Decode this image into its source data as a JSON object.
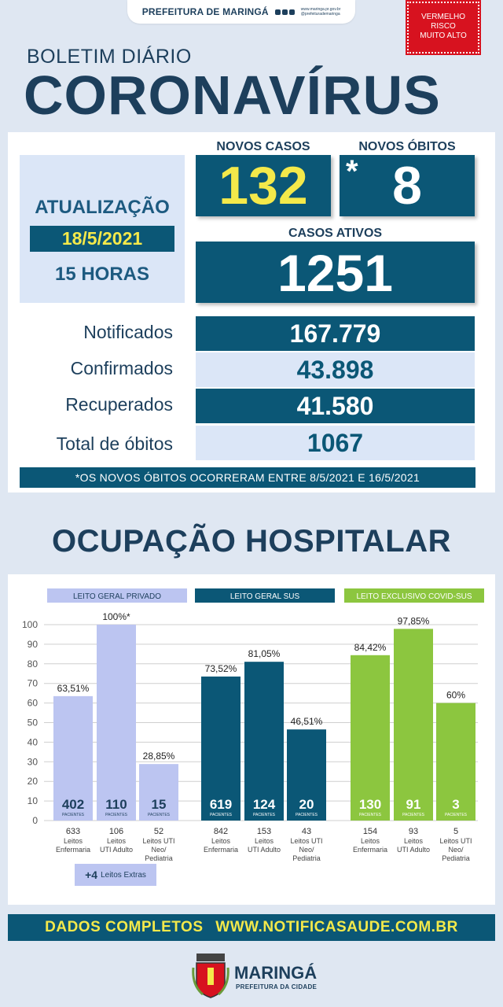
{
  "header": {
    "brand": "PREFEITURA DE MARINGÁ",
    "links": [
      "www.maringa.pr.gov.br",
      "@prefeiturademaringa"
    ],
    "risk": [
      "VERMELHO",
      "RISCO",
      "MUITO ALTO"
    ],
    "risk_color": "#d7121f",
    "subtitle": "BOLETIM DIÁRIO",
    "title": "CORONAVÍRUS"
  },
  "summary": {
    "update_label": "ATUALIZAÇÃO",
    "update_date": "18/5/2021",
    "update_hour": "15 HORAS",
    "new_cases_label": "NOVOS CASOS",
    "new_cases": "132",
    "new_deaths_label": "NOVOS ÓBITOS",
    "new_deaths_mark": "*",
    "new_deaths": "8",
    "active_label": "CASOS ATIVOS",
    "active": "1251",
    "rows": [
      {
        "label": "Notificados",
        "value": "167.779"
      },
      {
        "label": "Confirmados",
        "value": "43.898"
      },
      {
        "label": "Recuperados",
        "value": "41.580"
      },
      {
        "label": "Total de óbitos",
        "value": "1067"
      }
    ],
    "note": "*OS NOVOS ÓBITOS OCORRERAM ENTRE 8/5/2021 E 16/5/2021"
  },
  "hospital_title": "OCUPAÇÃO HOSPITALAR",
  "chart_data": {
    "type": "bar",
    "ylim": [
      0,
      100
    ],
    "yticks": [
      0,
      10,
      20,
      30,
      40,
      50,
      60,
      70,
      80,
      90,
      100
    ],
    "grid": true,
    "patients_label": "PACIENTES",
    "groups": [
      {
        "title": "LEITO GERAL PRIVADO",
        "color": "#bcc5f1",
        "header_color": "#bcc5f1",
        "header_text_color": "#1d3f5c",
        "bars": [
          {
            "value": 63.51,
            "label": "63,51%",
            "patients": "402",
            "beds": "633",
            "name": [
              "Leitos",
              "Enfermaria"
            ]
          },
          {
            "value": 100,
            "label": "100%*",
            "patients": "110",
            "beds": "106",
            "name": [
              "Leitos",
              "UTI Adulto"
            ]
          },
          {
            "value": 28.85,
            "label": "28,85%",
            "patients": "15",
            "beds": "52",
            "name": [
              "Leitos UTI",
              "Neo/",
              "Pediatria"
            ]
          }
        ]
      },
      {
        "title": "LEITO GERAL SUS",
        "color": "#0b5776",
        "header_color": "#0b5776",
        "header_text_color": "#ffffff",
        "bars": [
          {
            "value": 73.52,
            "label": "73,52%",
            "patients": "619",
            "beds": "842",
            "name": [
              "Leitos",
              "Enfermaria"
            ]
          },
          {
            "value": 81.05,
            "label": "81,05%",
            "patients": "124",
            "beds": "153",
            "name": [
              "Leitos",
              "UTI Adulto"
            ]
          },
          {
            "value": 46.51,
            "label": "46,51%",
            "patients": "20",
            "beds": "43",
            "name": [
              "Leitos UTI",
              "Neo/",
              "Pediatria"
            ]
          }
        ]
      },
      {
        "title": "LEITO EXCLUSIVO COVID-SUS",
        "color": "#8cc63f",
        "header_color": "#8cc63f",
        "header_text_color": "#ffffff",
        "bars": [
          {
            "value": 84.42,
            "label": "84,42%",
            "patients": "130",
            "beds": "154",
            "name": [
              "Leitos",
              "Enfermaria"
            ]
          },
          {
            "value": 97.85,
            "label": "97,85%",
            "patients": "91",
            "beds": "93",
            "name": [
              "Leitos",
              "UTI Adulto"
            ]
          },
          {
            "value": 60,
            "label": "60%",
            "patients": "3",
            "beds": "5",
            "name": [
              "Leitos UTI",
              "Neo/",
              "Pediatria"
            ]
          }
        ]
      }
    ],
    "extras": {
      "count": "+4",
      "text": "Leitos Extras"
    }
  },
  "footer": {
    "label": "DADOS COMPLETOS",
    "url": "WWW.NOTIFICASAUDE.COM.BR",
    "city": "MARINGÁ",
    "city_sub": "PREFEITURA DA CIDADE"
  }
}
